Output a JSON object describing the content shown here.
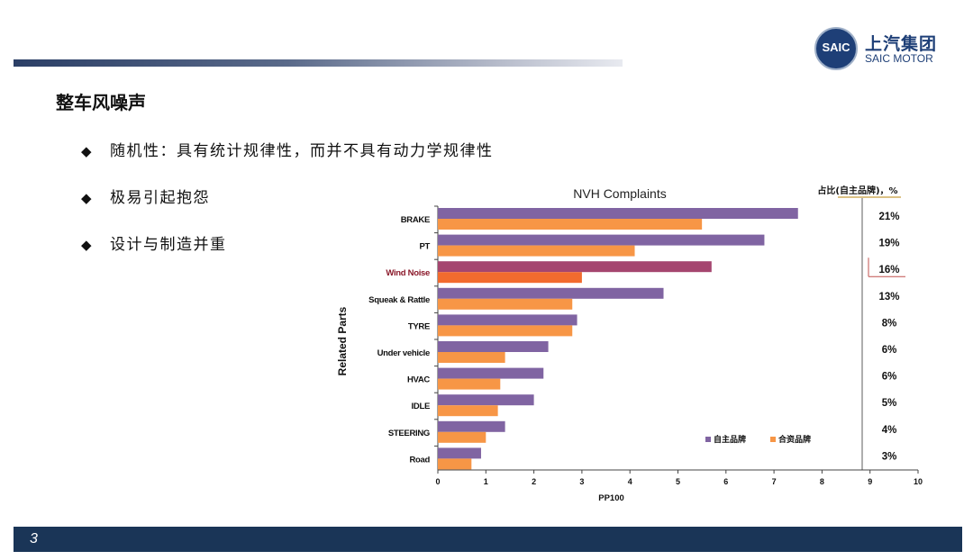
{
  "slide": {
    "title": "整车风噪声",
    "bullets": [
      "随机性：具有统计规律性，而并不具有动力学规律性",
      "极易引起抱怨",
      "设计与制造并重"
    ],
    "page_number": "3"
  },
  "logo": {
    "ring_text": "SAIC",
    "cn": "上汽集团",
    "en": "SAIC MOTOR"
  },
  "chart_data": {
    "type": "bar",
    "orientation": "horizontal",
    "title": "NVH Complaints",
    "xlabel": "PP100",
    "ylabel": "Related Parts",
    "xlim": [
      0,
      10
    ],
    "xticks": [
      "0",
      "1",
      "2",
      "3",
      "4",
      "5",
      "6",
      "7",
      "8",
      "9",
      "10"
    ],
    "categories": [
      "BRAKE",
      "PT",
      "Wind Noise",
      "Squeak & Rattle",
      "TYRE",
      "Under vehicle",
      "HVAC",
      "IDLE",
      "STEERING",
      "Road"
    ],
    "series": [
      {
        "name": "自主品牌",
        "color": "#8064a2",
        "values": [
          7.5,
          6.8,
          5.7,
          4.7,
          2.9,
          2.3,
          2.2,
          2.0,
          1.4,
          0.9
        ]
      },
      {
        "name": "合资品牌",
        "color": "#f79646",
        "values": [
          5.5,
          4.1,
          3.0,
          2.8,
          2.8,
          1.4,
          1.3,
          1.25,
          1.0,
          0.7
        ]
      }
    ],
    "highlight": {
      "category": "Wind Noise",
      "label_color": "#8b1a2b",
      "series_colors": [
        "#a5456f",
        "#f26b2e"
      ]
    },
    "share_header": "占比(自主品牌)，%",
    "share_values": [
      "21%",
      "19%",
      "16%",
      "13%",
      "8%",
      "6%",
      "6%",
      "5%",
      "4%",
      "3%"
    ],
    "legend_position": "bottom-right",
    "grid": false
  }
}
